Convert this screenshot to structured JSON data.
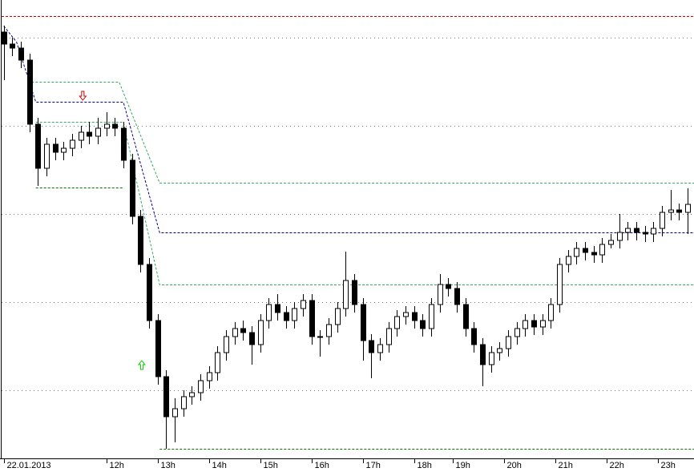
{
  "chart_data": {
    "type": "candlestick",
    "x": [
      0,
      2,
      4,
      6,
      8,
      10,
      12,
      14,
      16,
      18,
      20,
      22,
      24,
      26,
      28,
      30,
      32,
      34,
      36,
      38,
      40,
      42,
      44,
      46,
      48,
      50,
      52,
      54,
      56,
      58,
      60,
      62,
      64,
      66,
      68,
      70,
      72,
      74,
      76,
      78,
      80,
      82,
      84,
      86,
      88,
      90,
      92,
      94,
      96,
      98,
      100,
      102,
      104,
      106,
      108,
      110,
      112,
      114,
      116,
      118,
      120,
      122,
      124,
      126,
      128,
      130,
      132,
      134,
      136,
      138,
      140,
      142,
      144,
      146,
      148,
      150,
      152,
      154,
      156,
      158,
      160
    ],
    "open": [
      532,
      517,
      512,
      497,
      417,
      362,
      392,
      382,
      387,
      397,
      407,
      402,
      412,
      417,
      412,
      372,
      302,
      242,
      172,
      102,
      52,
      62,
      77,
      82,
      97,
      107,
      132,
      152,
      162,
      157,
      142,
      172,
      192,
      182,
      172,
      187,
      197,
      152,
      152,
      167,
      187,
      222,
      192,
      147,
      132,
      142,
      162,
      177,
      182,
      172,
      162,
      192,
      217,
      212,
      192,
      162,
      142,
      117,
      132,
      137,
      152,
      162,
      172,
      164,
      172,
      192,
      242,
      252,
      262,
      257,
      254,
      267,
      272,
      282,
      287,
      282,
      280,
      287,
      307,
      310,
      307
    ],
    "high": [
      540,
      525,
      520,
      505,
      425,
      400,
      400,
      395,
      405,
      415,
      420,
      425,
      432,
      425,
      420,
      380,
      310,
      250,
      180,
      110,
      75,
      85,
      90,
      105,
      115,
      140,
      160,
      170,
      172,
      165,
      180,
      200,
      205,
      190,
      195,
      205,
      205,
      160,
      175,
      195,
      258,
      230,
      200,
      155,
      150,
      170,
      185,
      190,
      190,
      180,
      200,
      230,
      225,
      220,
      200,
      170,
      150,
      140,
      145,
      160,
      170,
      180,
      180,
      180,
      200,
      250,
      260,
      270,
      270,
      265,
      275,
      280,
      305,
      295,
      295,
      290,
      295,
      315,
      335,
      318,
      337
    ],
    "low": [
      472,
      502,
      487,
      407,
      340,
      352,
      372,
      372,
      377,
      387,
      392,
      392,
      402,
      402,
      362,
      292,
      232,
      162,
      92,
      12,
      20,
      52,
      67,
      72,
      87,
      97,
      122,
      142,
      147,
      117,
      132,
      162,
      172,
      162,
      162,
      177,
      142,
      127,
      142,
      157,
      177,
      182,
      122,
      100,
      122,
      132,
      152,
      167,
      162,
      152,
      152,
      182,
      202,
      182,
      152,
      132,
      90,
      107,
      122,
      127,
      142,
      152,
      154,
      154,
      162,
      182,
      232,
      242,
      247,
      244,
      244,
      262,
      262,
      272,
      272,
      270,
      270,
      277,
      297,
      297,
      280
    ],
    "close": [
      517,
      512,
      497,
      417,
      362,
      392,
      382,
      387,
      397,
      407,
      402,
      412,
      417,
      412,
      372,
      302,
      242,
      172,
      102,
      52,
      62,
      77,
      82,
      97,
      107,
      132,
      152,
      162,
      157,
      142,
      172,
      192,
      182,
      172,
      187,
      197,
      152,
      152,
      167,
      187,
      222,
      192,
      147,
      132,
      142,
      162,
      177,
      182,
      172,
      162,
      192,
      217,
      212,
      192,
      162,
      142,
      117,
      132,
      137,
      152,
      162,
      172,
      164,
      172,
      192,
      242,
      252,
      262,
      257,
      254,
      267,
      272,
      282,
      287,
      282,
      280,
      287,
      307,
      310,
      307,
      317
    ],
    "up_color": "#ffffff",
    "down_color": "#000000",
    "xlim": [
      -0.5,
      161.5
    ],
    "ylim": [
      0,
      572
    ],
    "xticks": [
      {
        "value": 0,
        "label": "22.01.2013"
      },
      {
        "value": 24,
        "label": "12h"
      },
      {
        "value": 36,
        "label": "13h"
      },
      {
        "value": 48,
        "label": "14h"
      },
      {
        "value": 60,
        "label": "15h"
      },
      {
        "value": 72,
        "label": "16h"
      },
      {
        "value": 84,
        "label": "17h"
      },
      {
        "value": 96,
        "label": "18h"
      },
      {
        "value": 105,
        "label": "19h"
      },
      {
        "value": 117,
        "label": "20h"
      },
      {
        "value": 129,
        "label": "21h"
      },
      {
        "value": 141,
        "label": "22h"
      },
      {
        "value": 153,
        "label": "23h"
      }
    ],
    "gridlines": [
      525,
      415,
      305,
      195,
      85
    ],
    "lines": [
      {
        "x": [
          -0.5,
          161.5
        ],
        "values": [
          552,
          552
        ],
        "color": "#cc0000"
      },
      {
        "x": [
          6.5,
          27,
          36.5,
          161.5
        ],
        "values": [
          470,
          470,
          344,
          344
        ],
        "color": "#33aa66"
      },
      {
        "x": [
          0,
          3,
          7.5,
          28,
          36.5,
          161.5
        ],
        "values": [
          540,
          520,
          445,
          445,
          282,
          282
        ],
        "color": "#000099"
      },
      {
        "x": [
          7.5,
          28,
          36.5,
          161.5
        ],
        "values": [
          420,
          420,
          217,
          217
        ],
        "color": "#33aa66"
      },
      {
        "x": [
          7.5,
          28
        ],
        "values": [
          338,
          338
        ],
        "color": "#007700"
      },
      {
        "x": [
          36.5,
          161.5
        ],
        "values": [
          12,
          12
        ],
        "color": "#007700"
      }
    ],
    "signals": [
      {
        "x": 18.5,
        "y": 452,
        "direction": "down",
        "color": "#cc0000"
      },
      {
        "x": 32.3,
        "y": 117,
        "direction": "up",
        "color": "#00cc00"
      }
    ]
  }
}
